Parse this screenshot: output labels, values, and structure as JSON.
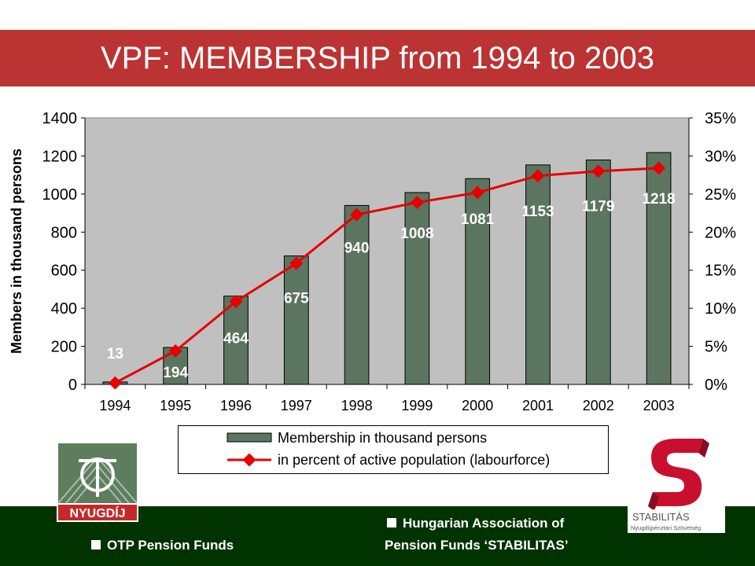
{
  "title": "VPF: MEMBERSHIP from 1994 to 2003",
  "colors": {
    "title_bar": "#bb3333",
    "bar": "#5c7560",
    "line": "#e60000",
    "label": "#ffffff",
    "footer": "#003300",
    "plot_bg": "#c0c0c0"
  },
  "chart_data": {
    "type": "bar",
    "categories": [
      "1994",
      "1995",
      "1996",
      "1997",
      "1998",
      "1999",
      "2000",
      "2001",
      "2002",
      "2003"
    ],
    "series": [
      {
        "name": "Membership in thousand persons",
        "type": "bar",
        "axis": "left",
        "values": [
          13,
          194,
          464,
          675,
          940,
          1008,
          1081,
          1153,
          1179,
          1218
        ]
      },
      {
        "name": "in percent of active population (labourforce)",
        "type": "line",
        "axis": "right",
        "values": [
          0.2,
          4.4,
          10.9,
          15.9,
          22.3,
          23.9,
          25.2,
          27.4,
          28.0,
          28.4
        ]
      }
    ],
    "data_labels": [
      "13",
      "194",
      "464",
      "675",
      "940",
      "1008",
      "1081",
      "1153",
      "1179",
      "1218"
    ],
    "ylabel": "Members in thousand persons",
    "ylim": [
      0,
      1400
    ],
    "yticks": [
      "0",
      "200",
      "400",
      "600",
      "800",
      "1000",
      "1200",
      "1400"
    ],
    "y2lim": [
      0,
      35
    ],
    "y2ticks": [
      "0%",
      "5%",
      "10%",
      "15%",
      "20%",
      "25%",
      "30%",
      "35%"
    ],
    "grid": false,
    "legend": "bottom"
  },
  "legend": {
    "bar_label": "Membership in thousand persons",
    "line_label": "in percent of active population (labourforce)"
  },
  "logos": {
    "otp_text": "NYUGDÍJ",
    "stabilitas_name": "STABILITÁS",
    "stabilitas_sub": "Nyugdíjpénztári Szövetség"
  },
  "footer": {
    "left": "OTP Pension Funds",
    "right_line1": "Hungarian Association of",
    "right_line2": "Pension Funds ‘STABILITAS’"
  }
}
